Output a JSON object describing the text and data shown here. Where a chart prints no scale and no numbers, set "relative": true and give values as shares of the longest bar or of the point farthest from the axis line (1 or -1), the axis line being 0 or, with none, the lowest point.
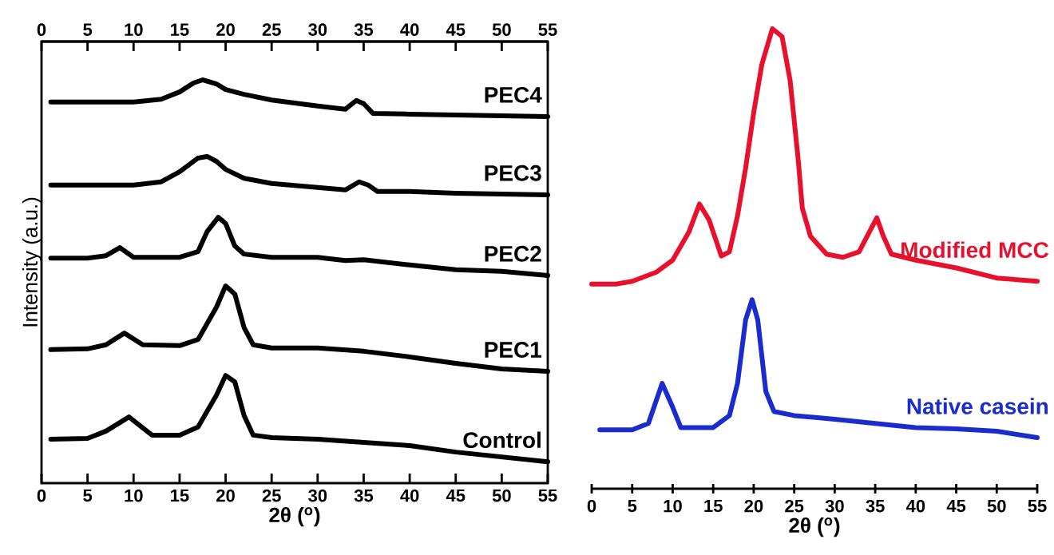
{
  "chart_data": [
    {
      "type": "line",
      "relative": true,
      "xlabel": "2θ ($^{o}$)",
      "ylabel": "Intensity (a.u.)",
      "xlim": [
        0,
        55
      ],
      "xticks": [
        0,
        5,
        10,
        15,
        20,
        25,
        30,
        35,
        40,
        45,
        50,
        55
      ],
      "x2lim": [
        0,
        55
      ],
      "x2ticks": [
        0,
        5,
        10,
        15,
        20,
        25,
        30,
        35,
        40,
        45,
        50,
        55
      ],
      "tick_labels": "x",
      "series": [
        {
          "name": "Control",
          "color": "#000000",
          "x": [
            1,
            5,
            7,
            9.5,
            12,
            15,
            17,
            19,
            20,
            21,
            22,
            23,
            25,
            30,
            35,
            40,
            45,
            50,
            55
          ],
          "values": [
            0.109,
            0.111,
            0.129,
            0.164,
            0.119,
            0.119,
            0.139,
            0.218,
            0.267,
            0.251,
            0.168,
            0.119,
            0.113,
            0.109,
            0.101,
            0.093,
            0.077,
            0.065,
            0.053
          ]
        },
        {
          "name": "PEC1",
          "color": "#000000",
          "x": [
            1,
            5,
            7,
            9,
            11,
            15,
            17,
            19,
            20,
            21,
            22,
            23,
            25,
            30,
            35,
            40,
            45,
            50,
            55
          ],
          "values": [
            0.331,
            0.333,
            0.343,
            0.372,
            0.343,
            0.341,
            0.356,
            0.436,
            0.489,
            0.469,
            0.386,
            0.343,
            0.335,
            0.335,
            0.327,
            0.313,
            0.297,
            0.283,
            0.277
          ]
        },
        {
          "name": "PEC2",
          "color": "#000000",
          "x": [
            1,
            5,
            7,
            8.5,
            10,
            15,
            17,
            18,
            19.2,
            20,
            21,
            22,
            25,
            30,
            33,
            35,
            40,
            45,
            50,
            55
          ],
          "values": [
            0.558,
            0.558,
            0.564,
            0.584,
            0.56,
            0.56,
            0.574,
            0.624,
            0.659,
            0.644,
            0.588,
            0.568,
            0.56,
            0.56,
            0.552,
            0.554,
            0.541,
            0.529,
            0.525,
            0.515
          ]
        },
        {
          "name": "PEC3",
          "color": "#000000",
          "x": [
            1,
            5,
            10,
            13,
            15,
            17,
            18,
            19,
            20,
            22,
            25,
            30,
            33,
            34.5,
            35.5,
            36.5,
            40,
            45,
            50,
            55
          ],
          "values": [
            0.739,
            0.739,
            0.739,
            0.747,
            0.772,
            0.806,
            0.81,
            0.798,
            0.778,
            0.756,
            0.743,
            0.733,
            0.727,
            0.747,
            0.739,
            0.723,
            0.723,
            0.719,
            0.717,
            0.715
          ]
        },
        {
          "name": "PEC4",
          "color": "#000000",
          "x": [
            1,
            5,
            10,
            13,
            15,
            16.5,
            17.5,
            19,
            20,
            22,
            25,
            30,
            33,
            34.2,
            35,
            36,
            40,
            45,
            50,
            55
          ],
          "values": [
            0.945,
            0.945,
            0.945,
            0.952,
            0.97,
            0.992,
            1,
            0.99,
            0.976,
            0.964,
            0.95,
            0.935,
            0.927,
            0.949,
            0.941,
            0.917,
            0.915,
            0.913,
            0.911,
            0.909
          ]
        }
      ]
    },
    {
      "type": "line",
      "relative": true,
      "xlabel": "2θ ($^{o}$)",
      "xlim": [
        0,
        55
      ],
      "xticks": [
        0,
        5,
        10,
        15,
        20,
        25,
        30,
        35,
        40,
        45,
        50,
        55
      ],
      "tick_labels": "x",
      "series": [
        {
          "name": "Modified MCC",
          "color": "#e8112d",
          "x": [
            0,
            3,
            5,
            8,
            10,
            12,
            13.3,
            14.5,
            16,
            17,
            18,
            19,
            20,
            21,
            22.3,
            23.5,
            24.5,
            25.5,
            26,
            27,
            29,
            31,
            33,
            34,
            35.2,
            36,
            37,
            40,
            45,
            50,
            55
          ],
          "values": [
            0.445,
            0.445,
            0.451,
            0.471,
            0.497,
            0.558,
            0.619,
            0.584,
            0.506,
            0.515,
            0.593,
            0.697,
            0.818,
            0.922,
            1,
            0.983,
            0.887,
            0.714,
            0.61,
            0.549,
            0.51,
            0.503,
            0.515,
            0.549,
            0.589,
            0.549,
            0.51,
            0.497,
            0.48,
            0.458,
            0.451
          ]
        },
        {
          "name": "Native casein",
          "color": "#1a2ccc",
          "x": [
            1,
            5,
            7,
            8.7,
            10,
            11,
            15,
            17,
            18,
            19,
            19.8,
            20.5,
            21.5,
            22.5,
            25,
            30,
            35,
            40,
            45,
            50,
            55
          ],
          "values": [
            0.128,
            0.128,
            0.142,
            0.229,
            0.177,
            0.133,
            0.133,
            0.159,
            0.229,
            0.367,
            0.411,
            0.367,
            0.211,
            0.168,
            0.159,
            0.151,
            0.142,
            0.133,
            0.13,
            0.125,
            0.111
          ]
        }
      ]
    }
  ]
}
